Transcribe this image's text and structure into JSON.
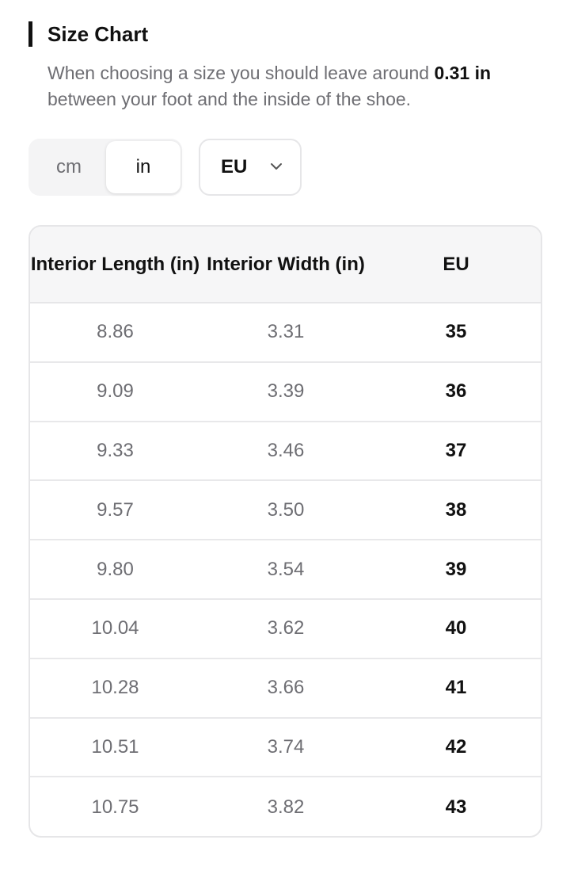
{
  "header": {
    "title": "Size Chart",
    "desc_prefix": "When choosing a size you should leave around ",
    "desc_value": "0.31 in",
    "desc_suffix": " between your foot and the inside of the shoe."
  },
  "unit_toggle": {
    "options": [
      "cm",
      "in"
    ],
    "selected": "in"
  },
  "region_select": {
    "value": "EU",
    "icon": "chevron-down-icon"
  },
  "table": {
    "headers": [
      "Interior Length (in)",
      "Interior Width (in)",
      "EU"
    ],
    "rows": [
      [
        "8.86",
        "3.31",
        "35"
      ],
      [
        "9.09",
        "3.39",
        "36"
      ],
      [
        "9.33",
        "3.46",
        "37"
      ],
      [
        "9.57",
        "3.50",
        "38"
      ],
      [
        "9.80",
        "3.54",
        "39"
      ],
      [
        "10.04",
        "3.62",
        "40"
      ],
      [
        "10.28",
        "3.66",
        "41"
      ],
      [
        "10.51",
        "3.74",
        "42"
      ],
      [
        "10.75",
        "3.82",
        "43"
      ]
    ]
  },
  "colors": {
    "text_primary": "#111111",
    "text_secondary": "#6e6e73",
    "border": "#e6e6e8",
    "header_bg": "#f6f6f7",
    "toggle_bg": "#f4f4f5"
  }
}
